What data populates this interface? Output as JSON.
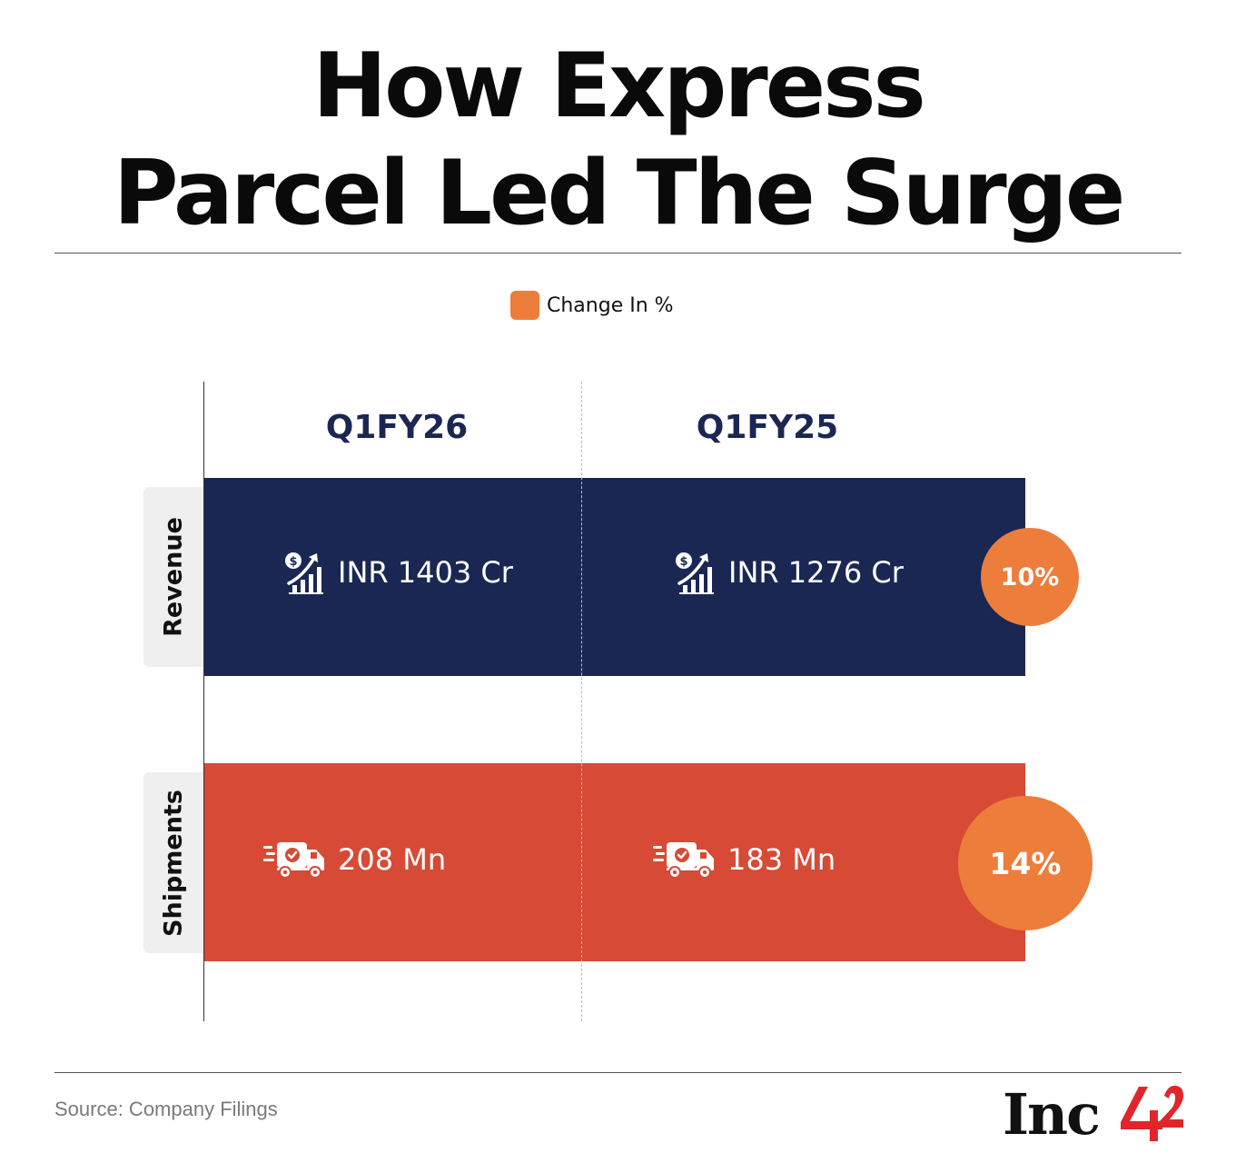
{
  "title_lines": [
    "How Express",
    "Parcel Led The Surge"
  ],
  "legend": {
    "label": "Change In %",
    "color": "#ED7D3A"
  },
  "columns": [
    "Q1FY26",
    "Q1FY25"
  ],
  "rows": [
    {
      "label": "Revenue",
      "icon": "revenue-growth-icon",
      "values": [
        "INR 1403 Cr",
        "INR 1276 Cr"
      ],
      "change": "10%",
      "color": "#1B2753"
    },
    {
      "label": "Shipments",
      "icon": "delivery-truck-icon",
      "values": [
        "208 Mn",
        "183 Mn"
      ],
      "change": "14%",
      "color": "#D64A36"
    }
  ],
  "chart_data": {
    "type": "table",
    "title": "How Express Parcel Led The Surge",
    "columns": [
      "Q1FY26",
      "Q1FY25",
      "Change In %"
    ],
    "rows": [
      {
        "metric": "Revenue",
        "unit": "INR Cr",
        "Q1FY26": 1403,
        "Q1FY25": 1276,
        "change_pct": 10
      },
      {
        "metric": "Shipments",
        "unit": "Mn",
        "Q1FY26": 208,
        "Q1FY25": 183,
        "change_pct": 14
      }
    ],
    "legend": [
      "Change In %"
    ]
  },
  "footer": {
    "source": "Source: Company Filings",
    "logo": "Inc42"
  }
}
